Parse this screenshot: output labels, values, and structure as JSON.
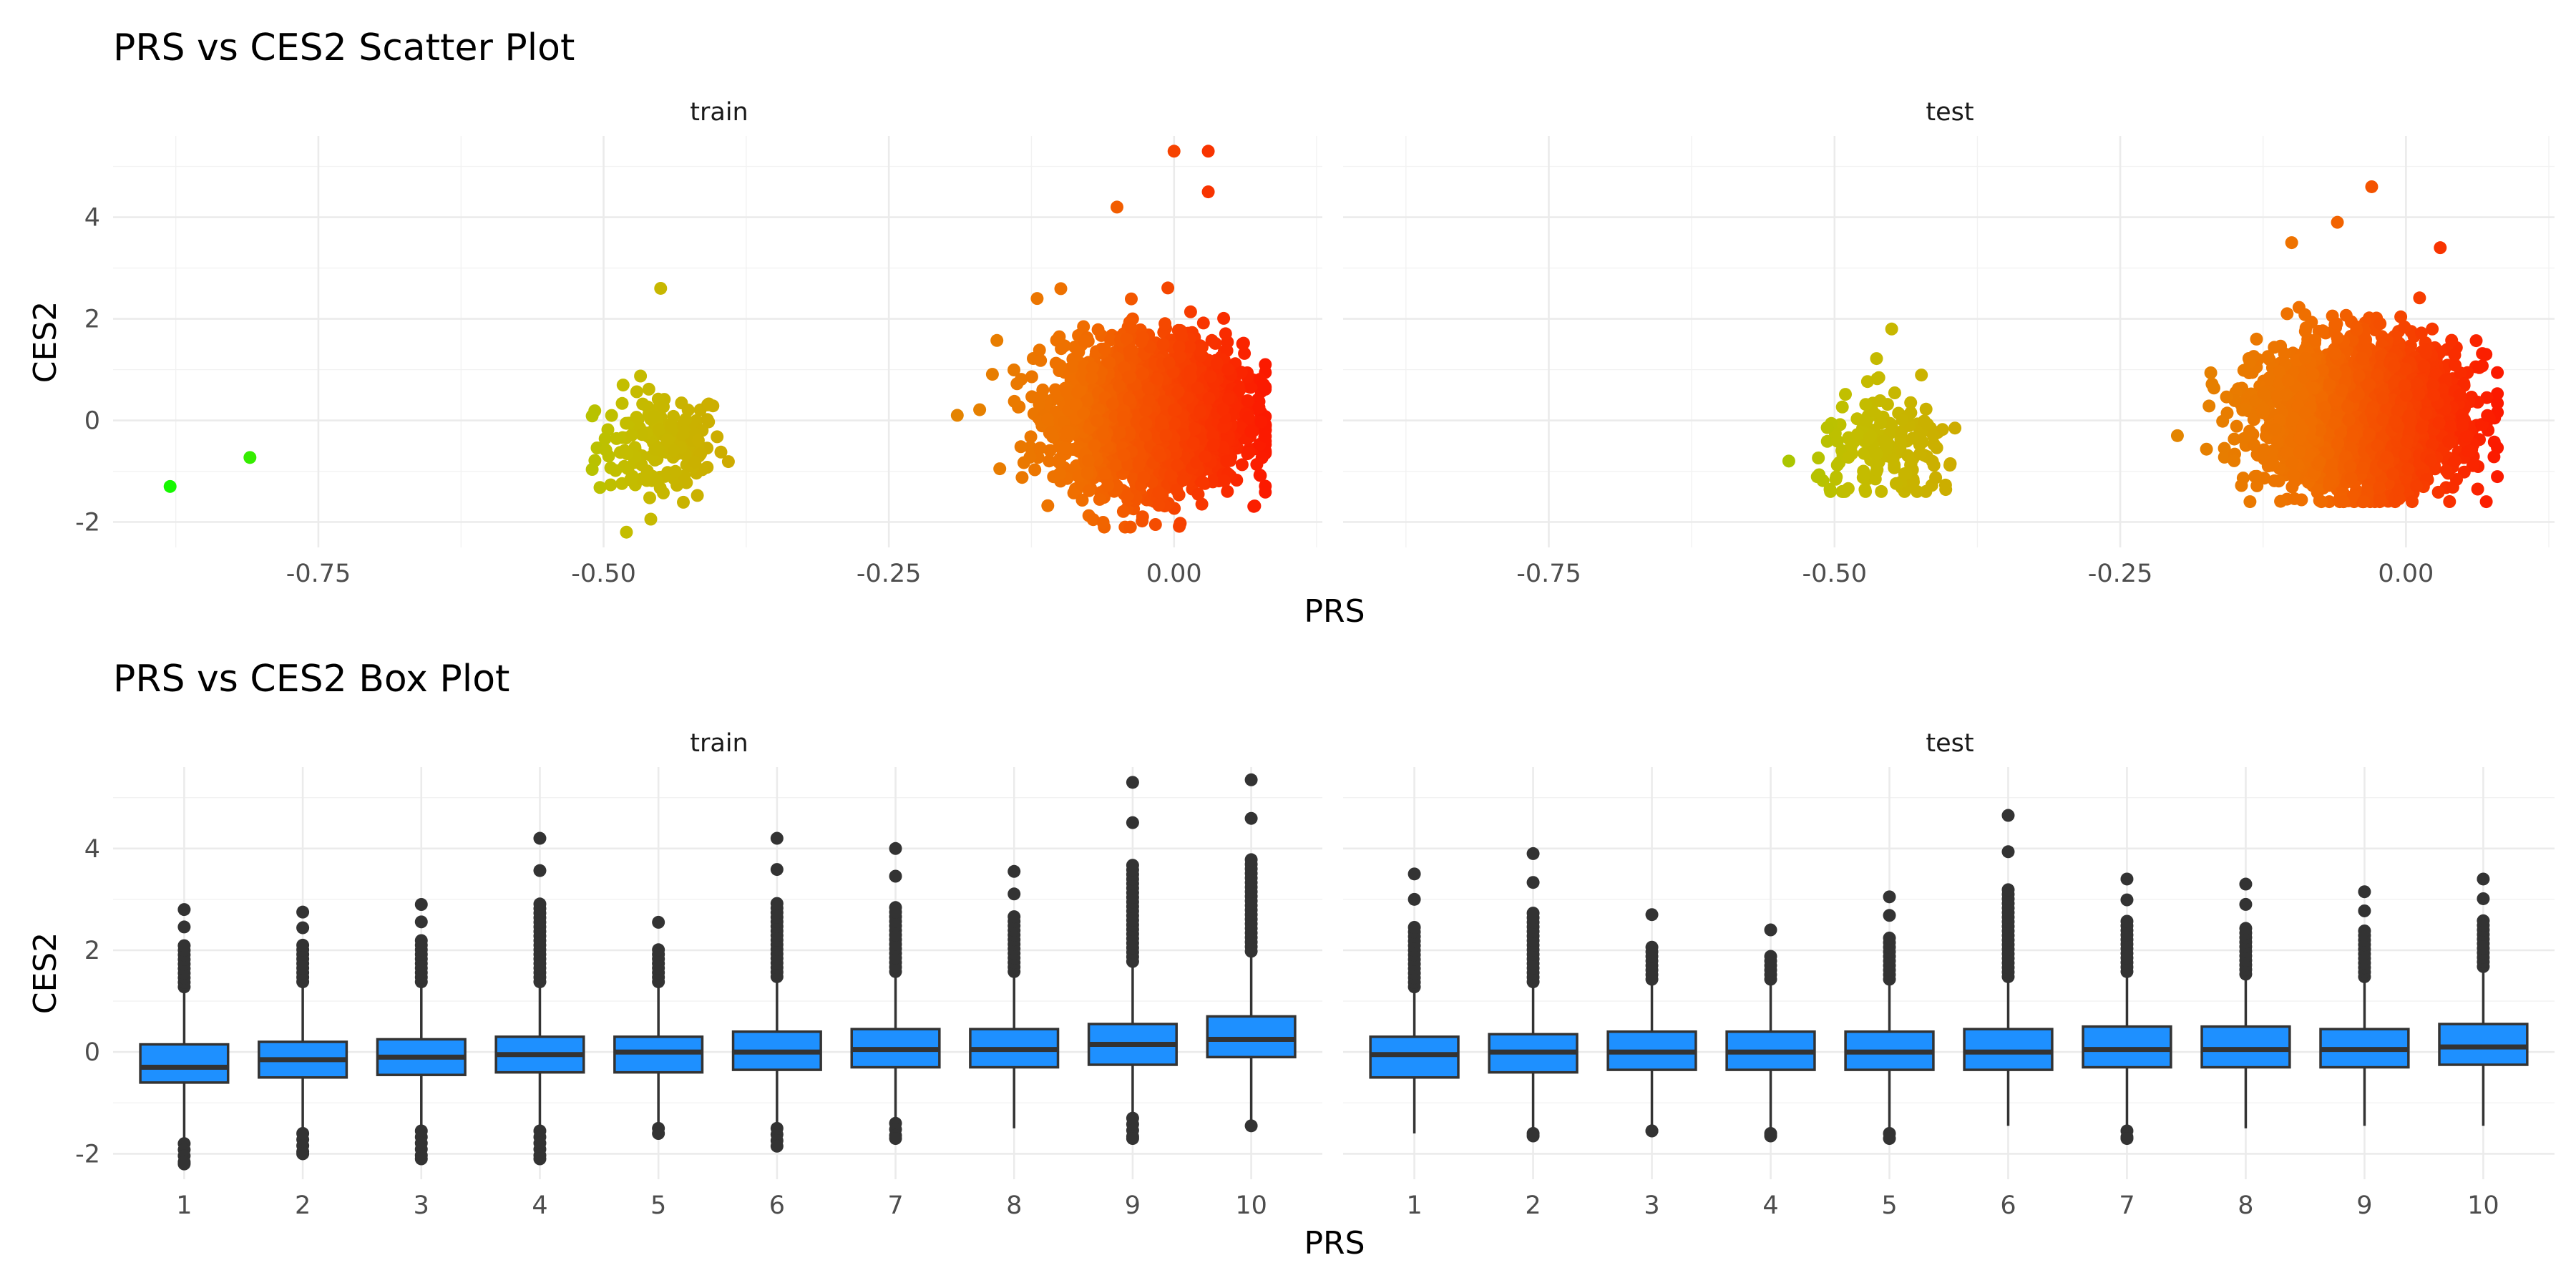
{
  "chart_data": [
    {
      "type": "scatter",
      "title": "PRS vs CES2 Scatter Plot",
      "xlabel": "PRS",
      "ylabel": "CES2",
      "panels": [
        "train",
        "test"
      ],
      "xlim": [
        -0.93,
        0.13
      ],
      "ylim": [
        -2.5,
        5.6
      ],
      "x_ticks": [
        -0.75,
        -0.5,
        -0.25,
        0.0
      ],
      "x_tick_labels": [
        "-0.75",
        "-0.50",
        "-0.25",
        "0.00"
      ],
      "y_ticks": [
        -2,
        0,
        2,
        4
      ],
      "y_tick_labels": [
        "-2",
        "0",
        "2",
        "4"
      ],
      "grid": true,
      "color_gradient": {
        "low": "#00ff00",
        "high": "#ff0000",
        "mapped_to": "PRS"
      },
      "clusters": {
        "train": [
          {
            "points": [
              [
                -0.88,
                -1.3
              ],
              [
                -0.81,
                -0.73
              ]
            ]
          },
          {
            "x_range": [
              -0.51,
              -0.37
            ],
            "y_range": [
              -2.2,
              2.6
            ],
            "center": [
              -0.45,
              -0.5
            ]
          },
          {
            "x_range": [
              -0.18,
              0.08
            ],
            "y_range": [
              -2.1,
              5.3
            ],
            "center": [
              -0.02,
              0.1
            ]
          }
        ],
        "test": [
          {
            "x_range": [
              -0.54,
              -0.38
            ],
            "y_range": [
              -1.4,
              1.8
            ],
            "center": [
              -0.45,
              -0.6
            ]
          },
          {
            "x_range": [
              -0.2,
              0.08
            ],
            "y_range": [
              -1.6,
              4.6
            ],
            "center": [
              -0.04,
              0.1
            ]
          }
        ]
      },
      "outliers": {
        "train": [
          [
            0.0,
            5.3
          ],
          [
            0.03,
            5.3
          ],
          [
            -0.05,
            4.2
          ],
          [
            0.03,
            4.5
          ],
          [
            0.08,
            1.1
          ],
          [
            -0.12,
            2.4
          ],
          [
            -0.45,
            2.6
          ],
          [
            -0.48,
            -2.2
          ],
          [
            -0.19,
            0.1
          ]
        ],
        "test": [
          [
            -0.03,
            4.6
          ],
          [
            -0.1,
            3.5
          ],
          [
            -0.06,
            3.9
          ],
          [
            0.07,
            1.3
          ],
          [
            -0.2,
            -0.3
          ],
          [
            -0.45,
            1.8
          ],
          [
            -0.54,
            -0.8
          ],
          [
            0.03,
            3.4
          ]
        ]
      }
    },
    {
      "type": "box",
      "title": "PRS vs CES2 Box Plot",
      "xlabel": "PRS",
      "ylabel": "CES2",
      "panels": [
        "train",
        "test"
      ],
      "categories": [
        "1",
        "2",
        "3",
        "4",
        "5",
        "6",
        "7",
        "8",
        "9",
        "10"
      ],
      "ylim": [
        -2.5,
        5.6
      ],
      "y_ticks": [
        -2,
        0,
        2,
        4
      ],
      "y_tick_labels": [
        "-2",
        "0",
        "2",
        "4"
      ],
      "box_color": "#1e90ff",
      "grid": true,
      "series": [
        {
          "name": "train",
          "q1": [
            -0.6,
            -0.5,
            -0.45,
            -0.4,
            -0.4,
            -0.35,
            -0.3,
            -0.3,
            -0.25,
            -0.1
          ],
          "median": [
            -0.3,
            -0.15,
            -0.1,
            -0.05,
            0.0,
            0.0,
            0.05,
            0.05,
            0.15,
            0.25
          ],
          "q3": [
            0.15,
            0.2,
            0.25,
            0.3,
            0.3,
            0.4,
            0.45,
            0.45,
            0.55,
            0.7
          ],
          "whisker_low": [
            -1.7,
            -1.5,
            -1.45,
            -1.45,
            -1.4,
            -1.4,
            -1.3,
            -1.5,
            -1.2,
            -1.4
          ],
          "whisker_high": [
            1.2,
            1.3,
            1.3,
            1.3,
            1.3,
            1.4,
            1.5,
            1.5,
            1.7,
            1.9
          ],
          "outliers_high": [
            2.8,
            2.75,
            2.9,
            4.2,
            2.55,
            4.2,
            4.0,
            3.55,
            5.3,
            5.35
          ],
          "outliers_low": [
            -2.2,
            -2.0,
            -2.1,
            -2.1,
            -1.6,
            -1.85,
            -1.7,
            null,
            -1.7,
            -1.45
          ]
        },
        {
          "name": "test",
          "q1": [
            -0.5,
            -0.4,
            -0.35,
            -0.35,
            -0.35,
            -0.35,
            -0.3,
            -0.3,
            -0.3,
            -0.25
          ],
          "median": [
            -0.05,
            0.0,
            0.0,
            0.0,
            0.0,
            0.0,
            0.05,
            0.05,
            0.05,
            0.1
          ],
          "q3": [
            0.3,
            0.35,
            0.4,
            0.4,
            0.4,
            0.45,
            0.5,
            0.5,
            0.45,
            0.55
          ],
          "whisker_low": [
            -1.6,
            -1.5,
            -1.45,
            -1.5,
            -1.5,
            -1.45,
            -1.45,
            -1.5,
            -1.45,
            -1.45
          ],
          "whisker_high": [
            1.2,
            1.3,
            1.35,
            1.35,
            1.35,
            1.4,
            1.5,
            1.45,
            1.4,
            1.6
          ],
          "outliers_high": [
            3.5,
            3.9,
            2.7,
            2.4,
            3.05,
            4.65,
            3.4,
            3.3,
            3.15,
            3.4
          ],
          "outliers_low": [
            null,
            -1.65,
            -1.55,
            -1.65,
            -1.7,
            null,
            -1.7,
            null,
            null,
            null
          ]
        }
      ]
    }
  ]
}
